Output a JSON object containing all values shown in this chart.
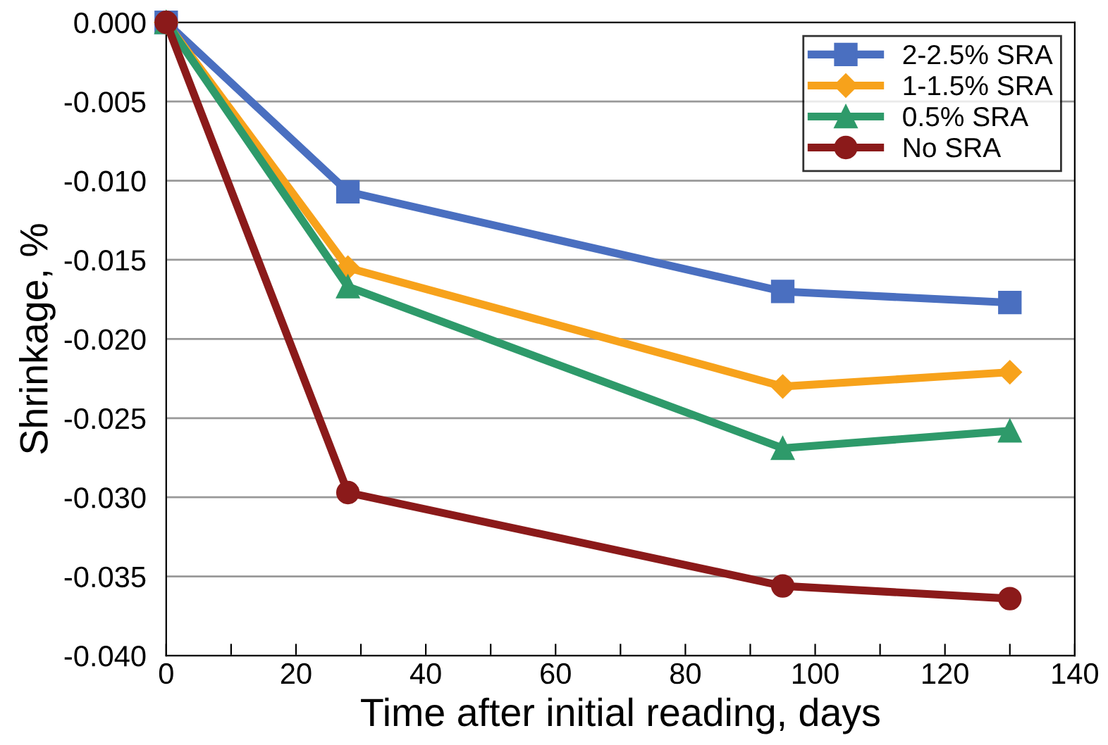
{
  "chart_data": {
    "type": "line",
    "xlabel": "Time after initial reading, days",
    "ylabel": "Shrinkage, %",
    "x": [
      0,
      28,
      95,
      130
    ],
    "series": [
      {
        "name": "2-2.5% SRA",
        "color": "#4a6fc0",
        "marker": "square",
        "values": [
          0.0,
          -0.0107,
          -0.017,
          -0.0177
        ]
      },
      {
        "name": "1-1.5% SRA",
        "color": "#f7a21b",
        "marker": "diamond",
        "values": [
          0.0,
          -0.0155,
          -0.023,
          -0.0221
        ]
      },
      {
        "name": "0.5% SRA",
        "color": "#2e9a6a",
        "marker": "triangle",
        "values": [
          0.0,
          -0.0167,
          -0.0269,
          -0.0258
        ]
      },
      {
        "name": "No SRA",
        "color": "#8b1a1a",
        "marker": "circle",
        "values": [
          0.0,
          -0.0297,
          -0.0356,
          -0.0364
        ]
      }
    ],
    "xlim": [
      0,
      140
    ],
    "xticks": [
      0,
      {
        "value": 10,
        "label": null
      },
      20,
      {
        "value": 30,
        "label": null
      },
      40,
      {
        "value": 50,
        "label": null
      },
      60,
      {
        "value": 70,
        "label": null
      },
      80,
      {
        "value": 90,
        "label": null
      },
      100,
      {
        "value": 110,
        "label": null
      },
      120,
      {
        "value": 130,
        "label": null
      },
      140
    ],
    "ylim": [
      -0.04,
      0.0
    ],
    "yticks": [
      {
        "value": 0.0,
        "label": "0.000"
      },
      {
        "value": -0.005,
        "label": "-0.005"
      },
      {
        "value": -0.01,
        "label": "-0.010"
      },
      {
        "value": -0.015,
        "label": "-0.015"
      },
      {
        "value": -0.02,
        "label": "-0.020"
      },
      {
        "value": -0.025,
        "label": "-0.025"
      },
      {
        "value": -0.03,
        "label": "-0.030"
      },
      {
        "value": -0.035,
        "label": "-0.035"
      },
      {
        "value": -0.04,
        "label": "-0.040"
      }
    ],
    "grid": "y",
    "legend": "top right",
    "line_style": "solid"
  }
}
